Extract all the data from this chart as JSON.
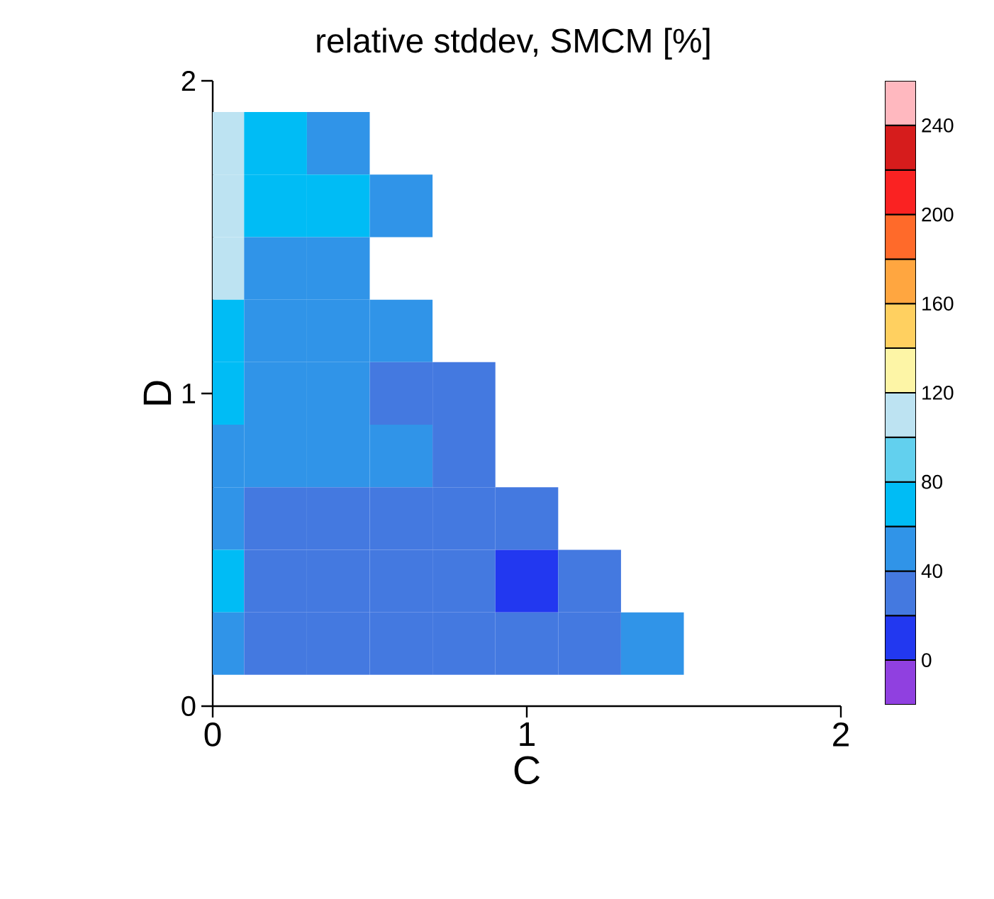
{
  "chart_data": {
    "type": "heatmap",
    "title": "relative stddev, SMCM [%]",
    "xlabel": "C",
    "ylabel": "D",
    "x": [
      0,
      0.2,
      0.4,
      0.6,
      0.8,
      1.0,
      1.2,
      1.4
    ],
    "y": [
      1.8,
      1.6,
      1.4,
      1.2,
      1.0,
      0.8,
      0.6,
      0.4,
      0.2
    ],
    "cells": [
      [
        110,
        70,
        50,
        null,
        null,
        null,
        null,
        null
      ],
      [
        110,
        70,
        70,
        50,
        null,
        null,
        null,
        null
      ],
      [
        110,
        50,
        50,
        null,
        null,
        null,
        null,
        null
      ],
      [
        70,
        50,
        50,
        50,
        null,
        null,
        null,
        null
      ],
      [
        70,
        50,
        50,
        30,
        30,
        null,
        null,
        null
      ],
      [
        50,
        50,
        50,
        50,
        30,
        null,
        null,
        null
      ],
      [
        50,
        30,
        30,
        30,
        30,
        30,
        null,
        null
      ],
      [
        70,
        30,
        30,
        30,
        30,
        10,
        30,
        null
      ],
      [
        50,
        30,
        30,
        30,
        30,
        30,
        30,
        50
      ]
    ],
    "xlim": [
      0,
      2
    ],
    "ylim": [
      0,
      2
    ],
    "xticks": [
      0,
      1,
      2
    ],
    "yticks": [
      0,
      1,
      2
    ],
    "clim": [
      -20,
      260
    ],
    "cticks": [
      0,
      40,
      80,
      120,
      160,
      200,
      240
    ],
    "colors": [
      "#9040e0",
      "#2238f0",
      "#4479e0",
      "#3094e8",
      "#00bcf5",
      "#62d0ee",
      "#bde3f2",
      "#fdf5a6",
      "#ffd060",
      "#ffa640",
      "#ff6a2a",
      "#fa2222",
      "#d61c1c",
      "#ffb8bf"
    ]
  }
}
